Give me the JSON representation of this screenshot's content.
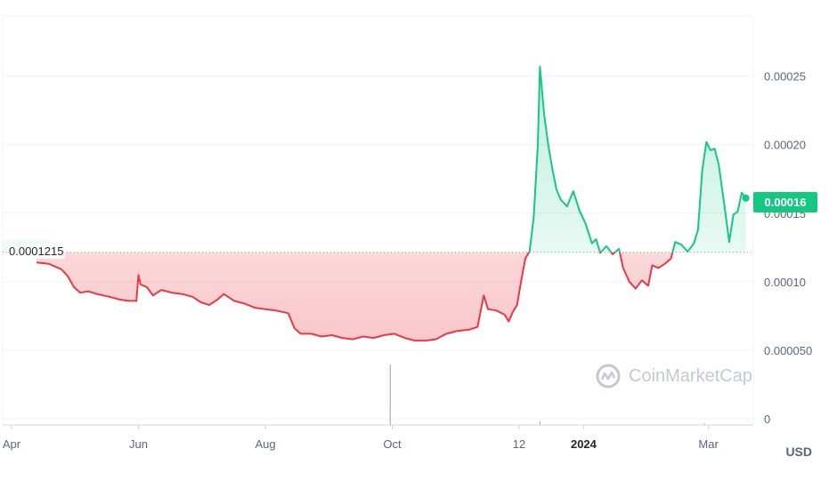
{
  "chart_data": {
    "type": "area",
    "currency": "USD",
    "reference_label": "0.0001215",
    "reference_value": 0.0001215,
    "current_price_label": "0.00016",
    "current_price": 0.000161,
    "watermark": "CoinMarketCap",
    "ylim": [
      0,
      0.00029
    ],
    "y_ticks": [
      {
        "value": 0,
        "label": "0"
      },
      {
        "value": 5e-05,
        "label": "0.000050"
      },
      {
        "value": 0.0001,
        "label": "0.00010"
      },
      {
        "value": 0.00015,
        "label": "0.00015"
      },
      {
        "value": 0.0002,
        "label": "0.00020"
      },
      {
        "value": 0.00025,
        "label": "0.00025"
      }
    ],
    "x_ticks": [
      {
        "date": "2023-04-01",
        "label": "Apr",
        "bold": false
      },
      {
        "date": "2023-06-01",
        "label": "Jun",
        "bold": false
      },
      {
        "date": "2023-08-01",
        "label": "Aug",
        "bold": false
      },
      {
        "date": "2023-10-01",
        "label": "Oct",
        "bold": false
      },
      {
        "date": "2023-12-01",
        "label": "12",
        "bold": false
      },
      {
        "date": "2024-01-01",
        "label": "2024",
        "bold": true
      },
      {
        "date": "2024-03-01",
        "label": "Mar",
        "bold": false
      }
    ],
    "xlim": [
      "2023-04-01",
      "2024-03-20"
    ],
    "colors": {
      "up": "#16c784",
      "down": "#ea3943",
      "reference": "#999999"
    },
    "series": [
      {
        "points": [
          [
            "2023-04-13",
            0.000114
          ],
          [
            "2023-04-19",
            0.000113
          ],
          [
            "2023-04-22",
            0.000111
          ],
          [
            "2023-04-25",
            0.000109
          ],
          [
            "2023-04-28",
            0.000104
          ],
          [
            "2023-05-01",
            9.6e-05
          ],
          [
            "2023-05-04",
            9.2e-05
          ],
          [
            "2023-05-08",
            9.3e-05
          ],
          [
            "2023-05-12",
            9.1e-05
          ],
          [
            "2023-05-18",
            8.9e-05
          ],
          [
            "2023-05-23",
            8.7e-05
          ],
          [
            "2023-05-27",
            8.6e-05
          ],
          [
            "2023-05-31",
            8.6e-05
          ],
          [
            "2023-06-01",
            0.000105
          ],
          [
            "2023-06-02",
            9.8e-05
          ],
          [
            "2023-06-05",
            9.6e-05
          ],
          [
            "2023-06-08",
            9e-05
          ],
          [
            "2023-06-12",
            9.4e-05
          ],
          [
            "2023-06-17",
            9.2e-05
          ],
          [
            "2023-06-22",
            9.1e-05
          ],
          [
            "2023-06-27",
            8.9e-05
          ],
          [
            "2023-07-01",
            8.5e-05
          ],
          [
            "2023-07-05",
            8.3e-05
          ],
          [
            "2023-07-09",
            8.7e-05
          ],
          [
            "2023-07-12",
            9.1e-05
          ],
          [
            "2023-07-17",
            8.6e-05
          ],
          [
            "2023-07-22",
            8.4e-05
          ],
          [
            "2023-07-27",
            8.1e-05
          ],
          [
            "2023-08-01",
            8e-05
          ],
          [
            "2023-08-06",
            7.9e-05
          ],
          [
            "2023-08-12",
            7.7e-05
          ],
          [
            "2023-08-15",
            6.6e-05
          ],
          [
            "2023-08-18",
            6.2e-05
          ],
          [
            "2023-08-23",
            6.2e-05
          ],
          [
            "2023-08-28",
            6e-05
          ],
          [
            "2023-09-02",
            6.1e-05
          ],
          [
            "2023-09-07",
            5.9e-05
          ],
          [
            "2023-09-12",
            5.8e-05
          ],
          [
            "2023-09-17",
            6e-05
          ],
          [
            "2023-09-22",
            5.9e-05
          ],
          [
            "2023-09-27",
            6.1e-05
          ],
          [
            "2023-10-02",
            6.2e-05
          ],
          [
            "2023-10-07",
            5.9e-05
          ],
          [
            "2023-10-12",
            5.7e-05
          ],
          [
            "2023-10-17",
            5.7e-05
          ],
          [
            "2023-10-22",
            5.8e-05
          ],
          [
            "2023-10-27",
            6.2e-05
          ],
          [
            "2023-11-01",
            6.4e-05
          ],
          [
            "2023-11-07",
            6.5e-05
          ],
          [
            "2023-11-11",
            6.7e-05
          ],
          [
            "2023-11-14",
            9e-05
          ],
          [
            "2023-11-16",
            8e-05
          ],
          [
            "2023-11-20",
            7.9e-05
          ],
          [
            "2023-11-24",
            7.6e-05
          ],
          [
            "2023-11-26",
            7.1e-05
          ],
          [
            "2023-11-28",
            7.8e-05
          ],
          [
            "2023-11-30",
            8.3e-05
          ],
          [
            "2023-12-02",
            0.000101
          ],
          [
            "2023-12-04",
            0.000117
          ],
          [
            "2023-12-06",
            0.000122
          ],
          [
            "2023-12-08",
            0.000147
          ],
          [
            "2023-12-10",
            0.0002
          ],
          [
            "2023-12-11",
            0.000257
          ],
          [
            "2023-12-13",
            0.000222
          ],
          [
            "2023-12-15",
            0.0002
          ],
          [
            "2023-12-17",
            0.000182
          ],
          [
            "2023-12-19",
            0.000167
          ],
          [
            "2023-12-21",
            0.00016
          ],
          [
            "2023-12-24",
            0.000155
          ],
          [
            "2023-12-27",
            0.000166
          ],
          [
            "2023-12-30",
            0.000152
          ],
          [
            "2024-01-02",
            0.000142
          ],
          [
            "2024-01-05",
            0.000128
          ],
          [
            "2024-01-07",
            0.000131
          ],
          [
            "2024-01-09",
            0.000121
          ],
          [
            "2024-01-12",
            0.000126
          ],
          [
            "2024-01-15",
            0.00012
          ],
          [
            "2024-01-18",
            0.000124
          ],
          [
            "2024-01-20",
            0.00011
          ],
          [
            "2024-01-23",
            0.0001
          ],
          [
            "2024-01-26",
            9.5e-05
          ],
          [
            "2024-01-29",
            0.000101
          ],
          [
            "2024-02-01",
            9.7e-05
          ],
          [
            "2024-02-03",
            0.000112
          ],
          [
            "2024-02-06",
            0.00011
          ],
          [
            "2024-02-09",
            0.000113
          ],
          [
            "2024-02-12",
            0.000117
          ],
          [
            "2024-02-14",
            0.000129
          ],
          [
            "2024-02-17",
            0.000127
          ],
          [
            "2024-02-20",
            0.000122
          ],
          [
            "2024-02-23",
            0.000128
          ],
          [
            "2024-02-25",
            0.000138
          ],
          [
            "2024-02-27",
            0.000181
          ],
          [
            "2024-02-29",
            0.000202
          ],
          [
            "2024-03-02",
            0.000196
          ],
          [
            "2024-03-04",
            0.000197
          ],
          [
            "2024-03-06",
            0.000185
          ],
          [
            "2024-03-09",
            0.000152
          ],
          [
            "2024-03-11",
            0.000129
          ],
          [
            "2024-03-13",
            0.000149
          ],
          [
            "2024-03-15",
            0.000151
          ],
          [
            "2024-03-17",
            0.000165
          ],
          [
            "2024-03-19",
            0.000161
          ]
        ]
      }
    ],
    "volume_spikes": [
      {
        "date": "2023-09-30",
        "relative": 1.0
      },
      {
        "date": "2023-12-11",
        "relative": 0.06
      },
      {
        "date": "2024-02-28",
        "relative": 0.03
      }
    ]
  }
}
